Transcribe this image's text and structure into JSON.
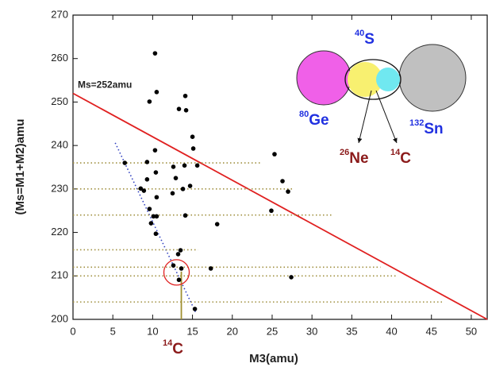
{
  "chart_data": {
    "type": "scatter",
    "x_label": "M3(amu)",
    "y_label": "(Ms=M1+M2)amu",
    "xlim": [
      0,
      52
    ],
    "ylim": [
      200,
      270
    ],
    "xticks": [
      0,
      5,
      10,
      15,
      20,
      25,
      30,
      35,
      40,
      45,
      50
    ],
    "yticks": [
      200,
      210,
      220,
      230,
      240,
      250,
      260,
      270
    ],
    "color": "#000000",
    "x": [
      10.3,
      10.5,
      9.6,
      13.3,
      14.1,
      14.2,
      15.0,
      15.1,
      10.3,
      6.5,
      9.3,
      12.6,
      14.0,
      15.6,
      10.4,
      12.9,
      9.3,
      14.7,
      13.8,
      8.5,
      8.9,
      12.5,
      10.5,
      9.6,
      10.1,
      10.5,
      14.1,
      9.8,
      18.1,
      10.4,
      13.5,
      13.2,
      12.6,
      13.6,
      17.3,
      13.3,
      15.3,
      25.3,
      26.3,
      27.0,
      24.9,
      27.4
    ],
    "values": [
      261.2,
      252.3,
      250.1,
      248.4,
      251.4,
      248.1,
      242.0,
      239.3,
      238.9,
      236.0,
      236.2,
      235.1,
      235.4,
      235.4,
      233.8,
      232.5,
      232.2,
      230.7,
      230.0,
      230.1,
      229.6,
      229.0,
      228.1,
      225.4,
      223.7,
      223.7,
      223.9,
      222.1,
      221.9,
      219.7,
      215.9,
      215.0,
      212.4,
      211.7,
      211.7,
      209.1,
      202.4,
      238.0,
      231.8,
      229.4,
      225.0,
      209.7
    ],
    "lines": [
      {
        "name": "Ms=252amu",
        "color": "#e02020",
        "style": "solid",
        "x": [
          0,
          52
        ],
        "values": [
          252,
          200
        ]
      },
      {
        "color": "#3040c0",
        "style": "dotted",
        "x": [
          5.3,
          15.4
        ],
        "values": [
          240.6,
          201.6
        ]
      },
      {
        "color": "#a09040",
        "style": "dotted",
        "x": [
          0,
          23.7
        ],
        "values": [
          236,
          236
        ]
      },
      {
        "color": "#a09040",
        "style": "dotted",
        "x": [
          0,
          27.7
        ],
        "values": [
          230,
          230
        ]
      },
      {
        "color": "#a09040",
        "style": "dotted",
        "x": [
          0,
          32.5
        ],
        "values": [
          224,
          224
        ]
      },
      {
        "color": "#a09040",
        "style": "dotted",
        "x": [
          0,
          15.7
        ],
        "values": [
          216,
          216
        ]
      },
      {
        "color": "#a09040",
        "style": "dotted",
        "x": [
          0,
          38.6
        ],
        "values": [
          212,
          212
        ]
      },
      {
        "color": "#a09040",
        "style": "dotted",
        "x": [
          0,
          40.6
        ],
        "values": [
          210,
          210
        ]
      },
      {
        "color": "#a09040",
        "style": "dotted",
        "x": [
          0,
          46.6
        ],
        "values": [
          204,
          204
        ]
      },
      {
        "color": "#a09030",
        "style": "solid",
        "x": [
          13.6,
          13.6
        ],
        "values": [
          200,
          211
        ]
      }
    ],
    "circle": {
      "x": 13.0,
      "y": 210.8,
      "color": "#e02020"
    },
    "bottom_label": {
      "mass": "14",
      "symbol": "C"
    },
    "diagram_labels": [
      {
        "mass": "40",
        "symbol": "S",
        "color": "#2030e0"
      },
      {
        "mass": "80",
        "symbol": "Ge",
        "color": "#2030e0"
      },
      {
        "mass": "132",
        "symbol": "Sn",
        "color": "#2030e0"
      },
      {
        "mass": "26",
        "symbol": "Ne",
        "color": "#8b1a1a"
      },
      {
        "mass": "14",
        "symbol": "C",
        "color": "#8b1a1a"
      }
    ]
  }
}
